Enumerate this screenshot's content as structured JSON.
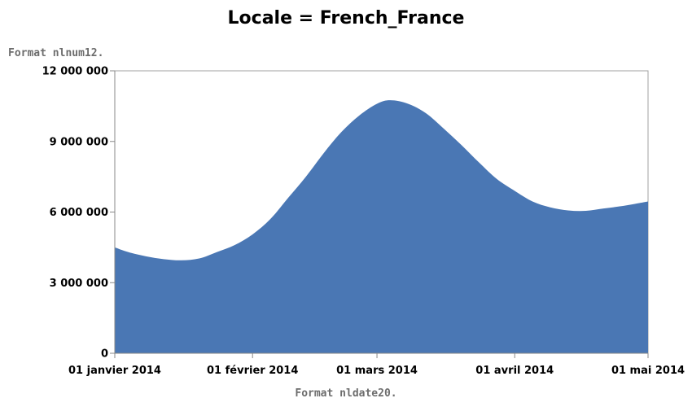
{
  "chart_data": {
    "type": "area",
    "title": "Locale = French_France",
    "ylabel": "Format nlnum12.",
    "xlabel": "Format nldate20.",
    "ylim": [
      0,
      12000000
    ],
    "xlim": [
      "2014-01-01",
      "2014-05-01"
    ],
    "y_ticks": [
      {
        "value": 0,
        "label": "0"
      },
      {
        "value": 3000000,
        "label": "3 000 000"
      },
      {
        "value": 6000000,
        "label": "6 000 000"
      },
      {
        "value": 9000000,
        "label": "9 000 000"
      },
      {
        "value": 12000000,
        "label": "12 000 000"
      }
    ],
    "x_ticks": [
      {
        "value": "2014-01-01",
        "label": "01 janvier 2014"
      },
      {
        "value": "2014-02-01",
        "label": "01 février 2014"
      },
      {
        "value": "2014-03-01",
        "label": "01 mars 2014"
      },
      {
        "value": "2014-04-01",
        "label": "01 avril 2014"
      },
      {
        "value": "2014-05-01",
        "label": "01 mai 2014"
      }
    ],
    "grid": false,
    "legend": "none",
    "colors": {
      "area": "#4a77b4",
      "axis": "#888888",
      "frame": "#a0a0a0"
    },
    "series": [
      {
        "x": [
          "2014-01-01",
          "2014-01-04",
          "2014-01-08",
          "2014-01-12",
          "2014-01-16",
          "2014-01-20",
          "2014-01-24",
          "2014-01-28",
          "2014-02-01",
          "2014-02-05",
          "2014-02-09",
          "2014-02-13",
          "2014-02-17",
          "2014-02-21",
          "2014-02-25",
          "2014-03-01",
          "2014-03-04",
          "2014-03-08",
          "2014-03-12",
          "2014-03-16",
          "2014-03-20",
          "2014-03-24",
          "2014-03-28",
          "2014-04-01",
          "2014-04-05",
          "2014-04-09",
          "2014-04-13",
          "2014-04-17",
          "2014-04-21",
          "2014-04-25",
          "2014-04-29",
          "2014-05-01"
        ],
        "values": [
          4500000,
          4300000,
          4120000,
          4000000,
          3950000,
          4030000,
          4300000,
          4600000,
          5050000,
          5700000,
          6600000,
          7500000,
          8500000,
          9400000,
          10100000,
          10600000,
          10750000,
          10600000,
          10200000,
          9550000,
          8850000,
          8100000,
          7400000,
          6900000,
          6450000,
          6200000,
          6070000,
          6050000,
          6150000,
          6250000,
          6380000,
          6450000
        ]
      }
    ]
  }
}
